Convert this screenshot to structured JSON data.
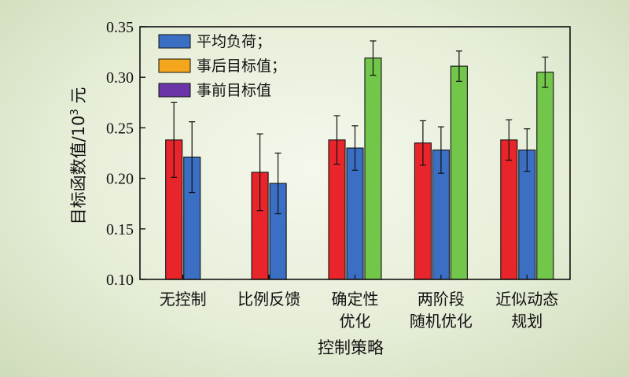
{
  "chart_data": {
    "type": "bar",
    "categories": [
      [
        "无控制"
      ],
      [
        "比例反馈"
      ],
      [
        "确定性",
        "优化"
      ],
      [
        "两阶段",
        "随机优化"
      ],
      [
        "近似动态",
        "规划"
      ]
    ],
    "series": [
      {
        "name": "",
        "color": "#e8252b",
        "values": [
          0.238,
          0.206,
          0.238,
          0.235,
          0.238
        ],
        "errors": [
          0.037,
          0.038,
          0.024,
          0.022,
          0.02
        ]
      },
      {
        "name": "平均负荷；",
        "color": "#3a6fc4",
        "values": [
          0.221,
          0.195,
          0.23,
          0.228,
          0.228
        ],
        "errors": [
          0.035,
          0.03,
          0.022,
          0.023,
          0.021
        ]
      },
      {
        "name": "",
        "color": "#72c64a",
        "values": [
          null,
          null,
          0.319,
          0.311,
          0.305
        ],
        "errors": [
          null,
          null,
          0.017,
          0.015,
          0.015
        ]
      }
    ],
    "legend": [
      {
        "label": "平均负荷；",
        "color": "#3a6fc4"
      },
      {
        "label": "事后目标值；",
        "color": "#f4a71d"
      },
      {
        "label": "事前目标值",
        "color": "#6b35a8"
      }
    ],
    "legend_position": "top-left",
    "xlabel": "控制策略",
    "ylabel_main": "目标函数值/10",
    "ylabel_sup": "3",
    "ylabel_unit": " 元",
    "ylim": [
      0.1,
      0.35
    ],
    "yticks": [
      "0.10",
      "0.15",
      "0.20",
      "0.25",
      "0.30",
      "0.35"
    ],
    "grid": false
  }
}
